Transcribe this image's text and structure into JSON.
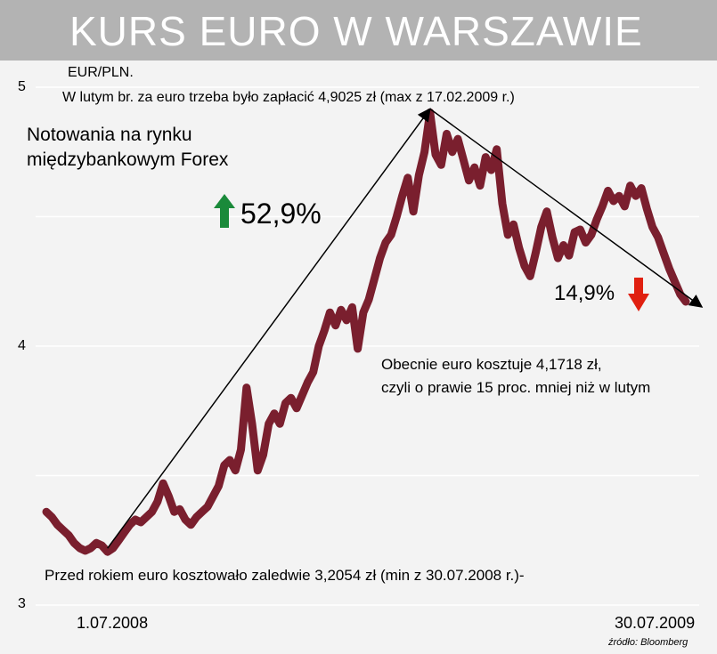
{
  "header": {
    "title": "KURS EURO W WARSZAWIE"
  },
  "chart_data": {
    "type": "line",
    "currency_label": "EUR/PLN.",
    "subtitle": "Notowania na rynku międzybankowym Forex",
    "ylim": [
      3,
      5
    ],
    "yticks": [
      "5",
      "4",
      "3"
    ],
    "x_start_label": "1.07.2008",
    "x_end_label": "30.07.2009",
    "source": "źródło: Bloomberg",
    "color": "#7a1f2e",
    "series": [
      {
        "values": [
          3.36,
          3.34,
          3.31,
          3.29,
          3.27,
          3.24,
          3.22,
          3.21,
          3.22,
          3.24,
          3.23,
          3.2054,
          3.22,
          3.25,
          3.28,
          3.31,
          3.33,
          3.32,
          3.34,
          3.36,
          3.4,
          3.47,
          3.42,
          3.36,
          3.37,
          3.33,
          3.31,
          3.34,
          3.36,
          3.38,
          3.42,
          3.46,
          3.54,
          3.56,
          3.52,
          3.6,
          3.84,
          3.7,
          3.52,
          3.58,
          3.7,
          3.74,
          3.7,
          3.78,
          3.8,
          3.76,
          3.81,
          3.86,
          3.9,
          4.0,
          4.06,
          4.13,
          4.08,
          4.14,
          4.1,
          4.15,
          3.99,
          4.13,
          4.18,
          4.26,
          4.34,
          4.4,
          4.43,
          4.5,
          4.58,
          4.65,
          4.52,
          4.66,
          4.75,
          4.9025,
          4.74,
          4.7,
          4.82,
          4.75,
          4.8,
          4.72,
          4.64,
          4.69,
          4.62,
          4.73,
          4.68,
          4.76,
          4.55,
          4.43,
          4.47,
          4.38,
          4.31,
          4.27,
          4.36,
          4.46,
          4.52,
          4.42,
          4.34,
          4.39,
          4.35,
          4.44,
          4.45,
          4.4,
          4.43,
          4.49,
          4.54,
          4.6,
          4.56,
          4.58,
          4.54,
          4.62,
          4.58,
          4.61,
          4.53,
          4.46,
          4.42,
          4.36,
          4.3,
          4.25,
          4.2,
          4.1718
        ]
      }
    ],
    "annotations": {
      "max_note": "W lutym br. za euro trzeba było zapłacić 4,9025 zł (max z 17.02.2009 r.)",
      "rise_pct": "52,9%",
      "fall_pct": "14,9%",
      "current_note_line1": "Obecnie euro kosztuje 4,1718 zł,",
      "current_note_line2": "czyli o prawie 15 proc. mniej niż w lutym",
      "min_note": "Przed rokiem euro kosztowało zaledwie 3,2054 zł (min z 30.07.2008 r.)-"
    },
    "rise_arrow_color": "#1a8a3a",
    "fall_arrow_color": "#e02010",
    "grid": true
  }
}
